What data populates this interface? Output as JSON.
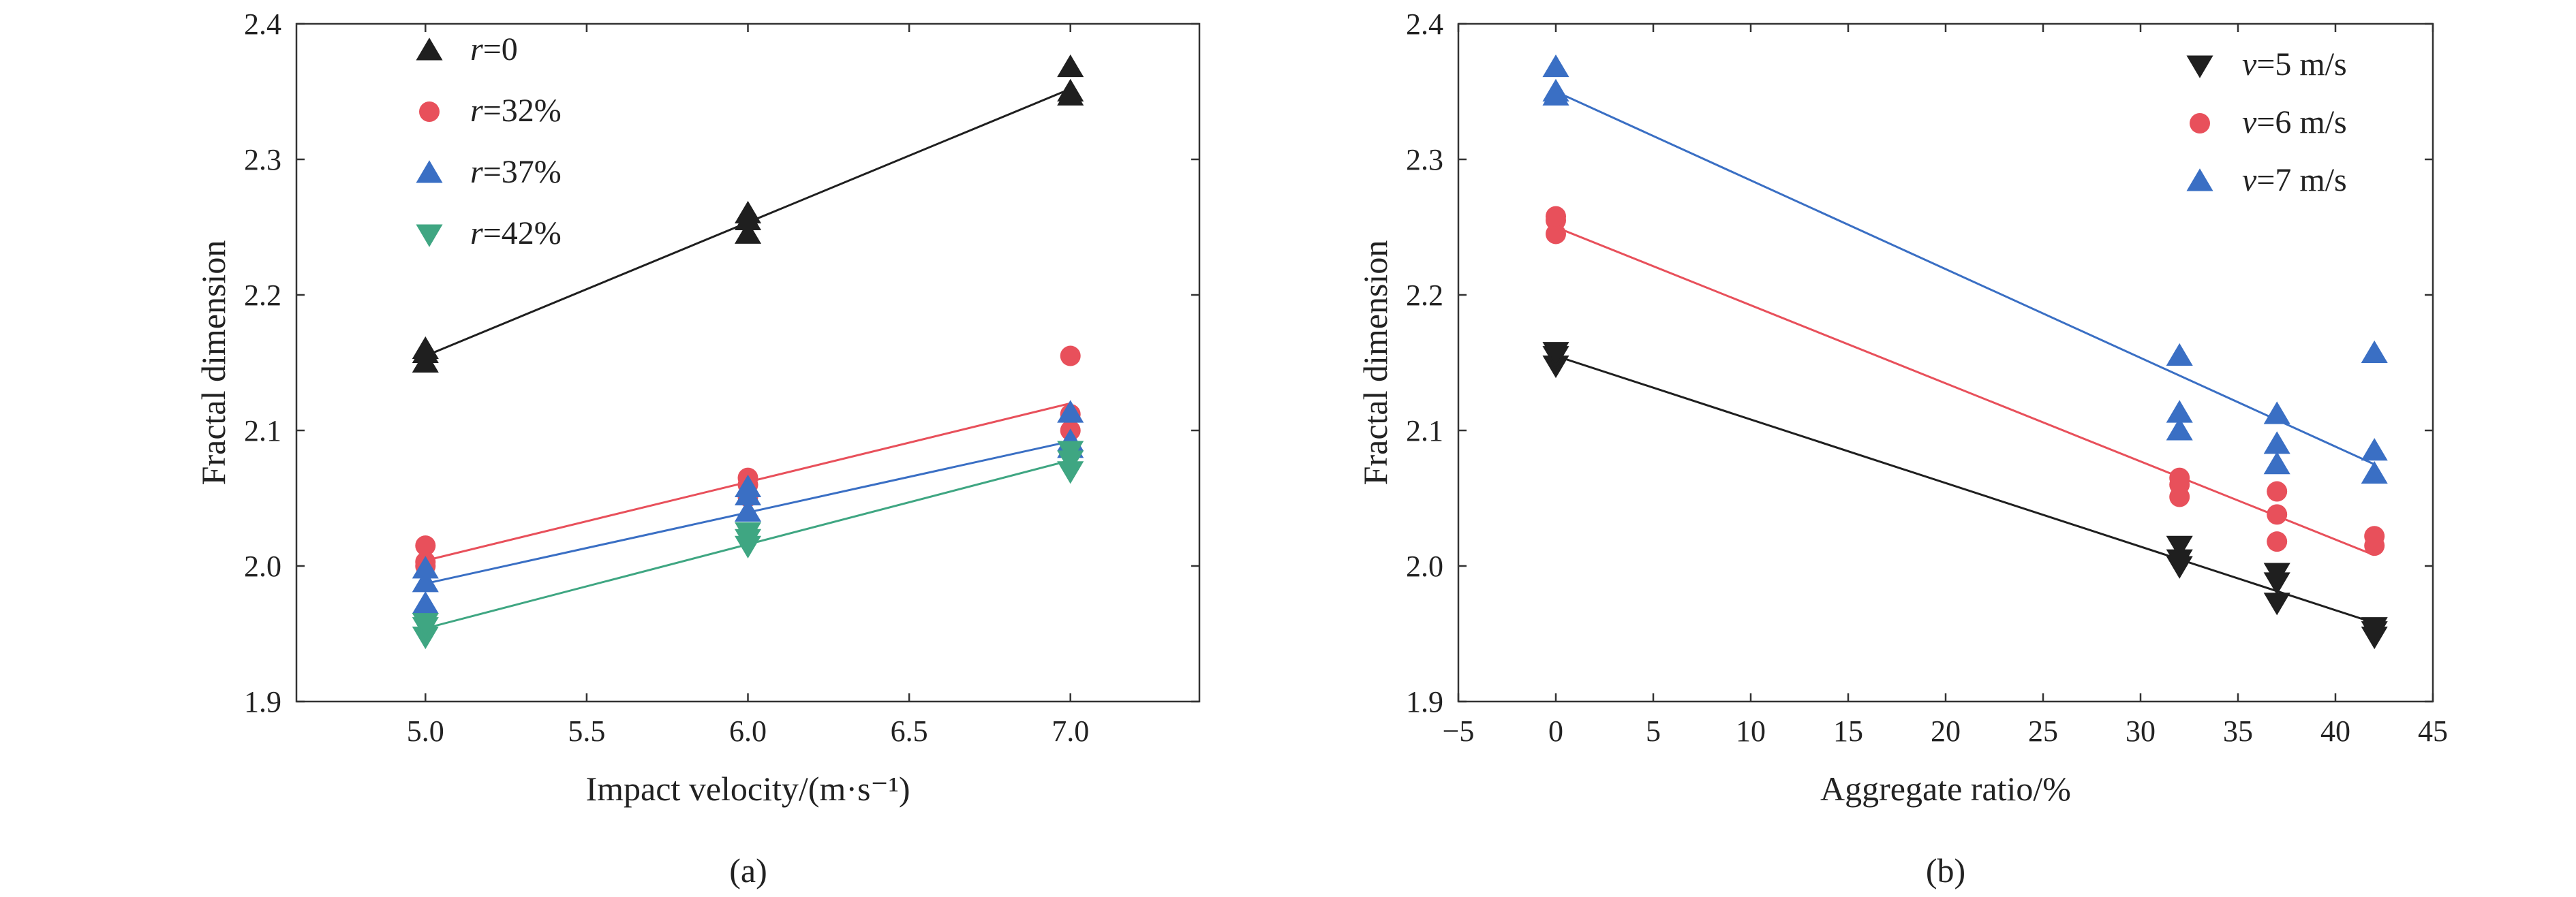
{
  "chart_data": [
    {
      "type": "scatter",
      "caption": "(a)",
      "xlabel": "Impact velocity/(m·s⁻¹)",
      "ylabel": "Fractal dimension",
      "xlim": [
        4.6,
        7.4
      ],
      "ylim": [
        1.9,
        2.4
      ],
      "x_ticks": [
        "5.0",
        "5.5",
        "6.0",
        "6.5",
        "7.0"
      ],
      "y_ticks": [
        "1.9",
        "2.0",
        "2.1",
        "2.2",
        "2.3",
        "2.4"
      ],
      "legend_position": "top-left",
      "series": [
        {
          "legend_var": "r",
          "legend_val": "=0",
          "marker": "triangle-up",
          "color": "#1f1f1f",
          "points": [
            [
              5.0,
              2.15
            ],
            [
              5.0,
              2.157
            ],
            [
              5.0,
              2.16
            ],
            [
              6.0,
              2.245
            ],
            [
              6.0,
              2.255
            ],
            [
              6.0,
              2.26
            ],
            [
              7.0,
              2.347
            ],
            [
              7.0,
              2.35
            ],
            [
              7.0,
              2.368
            ]
          ],
          "fit": [
            [
              5.0,
              2.155
            ],
            [
              7.0,
              2.352
            ]
          ]
        },
        {
          "legend_var": "r",
          "legend_val": "=32%",
          "marker": "circle",
          "color": "#e8505b",
          "points": [
            [
              5.0,
              2.015
            ],
            [
              5.0,
              2.003
            ],
            [
              5.0,
              2.0
            ],
            [
              6.0,
              2.065
            ],
            [
              6.0,
              2.06
            ],
            [
              6.0,
              2.051
            ],
            [
              7.0,
              2.155
            ],
            [
              7.0,
              2.112
            ],
            [
              7.0,
              2.1
            ]
          ],
          "fit": [
            [
              5.0,
              2.004
            ],
            [
              7.0,
              2.12
            ]
          ]
        },
        {
          "legend_var": "r",
          "legend_val": "=37%",
          "marker": "triangle-up",
          "color": "#3a6fc4",
          "points": [
            [
              5.0,
              1.972
            ],
            [
              5.0,
              1.988
            ],
            [
              5.0,
              1.998
            ],
            [
              6.0,
              2.04
            ],
            [
              6.0,
              2.052
            ],
            [
              6.0,
              2.058
            ],
            [
              7.0,
              2.113
            ],
            [
              7.0,
              2.092
            ],
            [
              7.0,
              2.087
            ]
          ],
          "fit": [
            [
              5.0,
              1.987
            ],
            [
              7.0,
              2.092
            ]
          ]
        },
        {
          "legend_var": "r",
          "legend_val": "=42%",
          "marker": "triangle-down",
          "color": "#3fa682",
          "points": [
            [
              5.0,
              1.948
            ],
            [
              5.0,
              1.955
            ],
            [
              5.0,
              1.958
            ],
            [
              6.0,
              2.015
            ],
            [
              6.0,
              2.02
            ],
            [
              6.0,
              2.025
            ],
            [
              7.0,
              2.07
            ],
            [
              7.0,
              2.078
            ],
            [
              7.0,
              2.085
            ]
          ],
          "fit": [
            [
              5.0,
              1.954
            ],
            [
              7.0,
              2.078
            ]
          ]
        }
      ]
    },
    {
      "type": "scatter",
      "caption": "(b)",
      "xlabel": "Aggregate ratio/%",
      "ylabel": "Fractal dimension",
      "xlim": [
        -5,
        45
      ],
      "ylim": [
        1.9,
        2.4
      ],
      "x_ticks": [
        "−5",
        "0",
        "5",
        "10",
        "15",
        "20",
        "25",
        "30",
        "35",
        "40",
        "45"
      ],
      "y_ticks": [
        "1.9",
        "2.0",
        "2.1",
        "2.2",
        "2.3",
        "2.4"
      ],
      "legend_position": "top-right",
      "series": [
        {
          "legend_var": "v",
          "legend_val": "=5 m/s",
          "marker": "triangle-down",
          "color": "#1f1f1f",
          "points": [
            [
              0,
              2.148
            ],
            [
              0,
              2.155
            ],
            [
              0,
              2.158
            ],
            [
              32,
              2.0
            ],
            [
              32,
              2.005
            ],
            [
              32,
              2.015
            ],
            [
              37,
              1.973
            ],
            [
              37,
              1.988
            ],
            [
              37,
              1.995
            ],
            [
              42,
              1.948
            ],
            [
              42,
              1.952
            ],
            [
              42,
              1.955
            ]
          ],
          "fit": [
            [
              0,
              2.155
            ],
            [
              42,
              1.958
            ]
          ]
        },
        {
          "legend_var": "v",
          "legend_val": "=6 m/s",
          "marker": "circle",
          "color": "#e8505b",
          "points": [
            [
              0,
              2.245
            ],
            [
              0,
              2.255
            ],
            [
              0,
              2.258
            ],
            [
              32,
              2.051
            ],
            [
              32,
              2.06
            ],
            [
              32,
              2.065
            ],
            [
              37,
              2.018
            ],
            [
              37,
              2.038
            ],
            [
              37,
              2.055
            ],
            [
              42,
              2.015
            ],
            [
              42,
              2.022
            ]
          ],
          "fit": [
            [
              0,
              2.25
            ],
            [
              42,
              2.008
            ]
          ]
        },
        {
          "legend_var": "v",
          "legend_val": "=7 m/s",
          "marker": "triangle-up",
          "color": "#3a6fc4",
          "points": [
            [
              0,
              2.347
            ],
            [
              0,
              2.35
            ],
            [
              0,
              2.368
            ],
            [
              32,
              2.1
            ],
            [
              32,
              2.113
            ],
            [
              32,
              2.155
            ],
            [
              37,
              2.075
            ],
            [
              37,
              2.09
            ],
            [
              37,
              2.112
            ],
            [
              42,
              2.068
            ],
            [
              42,
              2.085
            ],
            [
              42,
              2.157
            ]
          ],
          "fit": [
            [
              0,
              2.35
            ],
            [
              42,
              2.075
            ]
          ]
        }
      ]
    }
  ]
}
